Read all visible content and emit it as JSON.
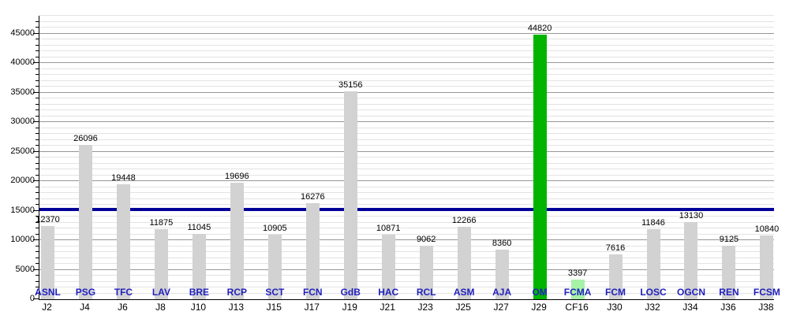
{
  "chart_data": {
    "type": "bar",
    "title": "",
    "xlabel": "",
    "ylabel": "",
    "legend": "none",
    "grid": "on",
    "categories": [
      "J2",
      "J4",
      "J6",
      "J8",
      "J10",
      "J13",
      "J15",
      "J17",
      "J19",
      "J21",
      "J23",
      "J25",
      "J27",
      "J29",
      "CF16",
      "J30",
      "J32",
      "J34",
      "J36",
      "J38"
    ],
    "bar_labels": [
      "ASNL",
      "PSG",
      "TFC",
      "LAV",
      "BRE",
      "RCP",
      "SCT",
      "FCN",
      "GdB",
      "HAC",
      "RCL",
      "ASM",
      "AJA",
      "OM",
      "FCMA",
      "FCM",
      "LOSC",
      "OGCN",
      "REN",
      "FCSM"
    ],
    "values": [
      12370,
      26096,
      19448,
      11875,
      11045,
      19696,
      10905,
      16276,
      35156,
      10871,
      9062,
      12266,
      8360,
      44820,
      3397,
      7616,
      11846,
      13130,
      9125,
      10840
    ],
    "bar_colors": [
      "#d2d2d2",
      "#d2d2d2",
      "#d2d2d2",
      "#d2d2d2",
      "#d2d2d2",
      "#d2d2d2",
      "#d2d2d2",
      "#d2d2d2",
      "#d2d2d2",
      "#d2d2d2",
      "#d2d2d2",
      "#d2d2d2",
      "#d2d2d2",
      "#00b400",
      "#a6f2a6",
      "#d2d2d2",
      "#d2d2d2",
      "#d2d2d2",
      "#d2d2d2",
      "#d2d2d2"
    ],
    "y_ticks": [
      0,
      5000,
      10000,
      15000,
      20000,
      25000,
      30000,
      35000,
      40000,
      45000
    ],
    "ylim": [
      0,
      48000
    ],
    "minor_grid_step": 1000,
    "major_grid_step": 5000,
    "reference_line": {
      "value": 15210,
      "color": "#000099"
    }
  },
  "colors": {
    "background": "#ffffff",
    "bar_default": "#d2d2d2",
    "bar_highlight_green": "#00b400",
    "bar_highlight_lightgreen": "#a6f2a6",
    "reference_line": "#000099",
    "team_label": "#2121bd",
    "value_label": "#000000",
    "axis": "#000000",
    "grid_minor": "#e3e3e3",
    "grid_major": "#979797"
  }
}
